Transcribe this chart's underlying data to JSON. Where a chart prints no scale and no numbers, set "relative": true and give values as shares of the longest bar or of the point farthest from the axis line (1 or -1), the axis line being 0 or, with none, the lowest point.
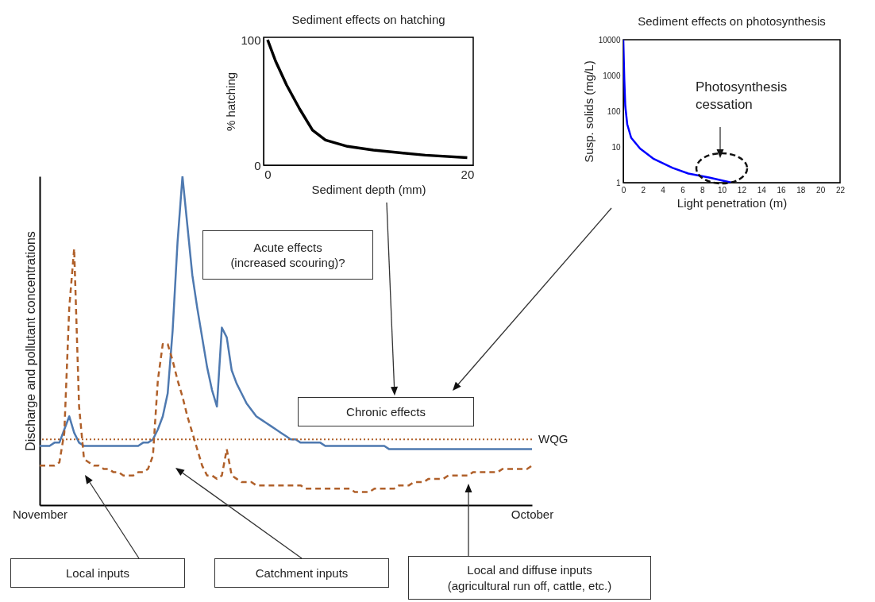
{
  "chart_data": [
    {
      "type": "line",
      "relative": true,
      "ylabel": "Discharge and pollutant concentrations",
      "categories": [
        "November",
        null,
        null,
        null,
        null,
        null,
        null,
        null,
        null,
        null,
        null,
        null,
        null,
        null,
        null,
        null,
        null,
        null,
        null,
        null,
        null,
        null,
        null,
        null,
        null,
        null,
        null,
        null,
        null,
        null,
        null,
        null,
        null,
        null,
        null,
        null,
        null,
        null,
        null,
        null,
        null,
        null,
        null,
        null,
        null,
        null,
        null,
        null,
        null,
        null,
        null,
        null,
        null,
        null,
        null,
        null,
        null,
        null,
        null,
        null,
        null,
        null,
        null,
        null,
        null,
        null,
        null,
        null,
        null,
        null,
        null,
        null,
        null,
        null,
        null,
        null,
        null,
        null,
        null,
        null,
        null,
        null,
        null,
        null,
        null,
        null,
        null,
        null,
        null,
        null,
        null,
        null,
        null,
        null,
        null,
        null,
        null,
        null,
        null,
        null,
        "October"
      ],
      "series": [
        {
          "color": "#4e79b0",
          "line_style": "solid",
          "values": [
            0.18,
            0.18,
            0.18,
            0.19,
            0.19,
            0.23,
            0.27,
            0.22,
            0.19,
            0.18,
            0.18,
            0.18,
            0.18,
            0.18,
            0.18,
            0.18,
            0.18,
            0.18,
            0.18,
            0.18,
            0.18,
            0.19,
            0.19,
            0.2,
            0.23,
            0.27,
            0.34,
            0.53,
            0.8,
            1,
            0.85,
            0.7,
            0.6,
            0.51,
            0.42,
            0.35,
            0.3,
            0.54,
            0.51,
            0.41,
            0.37,
            0.34,
            0.31,
            0.29,
            0.27,
            0.26,
            0.25,
            0.24,
            0.23,
            0.22,
            0.21,
            0.2,
            0.2,
            0.19,
            0.19,
            0.19,
            0.19,
            0.19,
            0.18,
            0.18,
            0.18,
            0.18,
            0.18,
            0.18,
            0.18,
            0.18,
            0.18,
            0.18,
            0.18,
            0.18,
            0.18,
            0.17,
            0.17,
            0.17,
            0.17,
            0.17,
            0.17,
            0.17,
            0.17,
            0.17,
            0.17,
            0.17,
            0.17,
            0.17,
            0.17,
            0.17,
            0.17,
            0.17,
            0.17,
            0.17,
            0.17,
            0.17,
            0.17,
            0.17,
            0.17,
            0.17,
            0.17,
            0.17,
            0.17,
            0.17,
            0.17
          ]
        },
        {
          "color": "#b0602a",
          "line_style": "dashed",
          "values": [
            0.12,
            0.12,
            0.12,
            0.12,
            0.13,
            0.22,
            0.6,
            0.78,
            0.3,
            0.14,
            0.13,
            0.12,
            0.12,
            0.11,
            0.11,
            0.1,
            0.1,
            0.09,
            0.09,
            0.09,
            0.1,
            0.1,
            0.11,
            0.15,
            0.38,
            0.49,
            0.49,
            0.44,
            0.38,
            0.33,
            0.27,
            0.22,
            0.17,
            0.12,
            0.09,
            0.09,
            0.08,
            0.09,
            0.17,
            0.09,
            0.08,
            0.07,
            0.07,
            0.07,
            0.06,
            0.06,
            0.06,
            0.06,
            0.06,
            0.06,
            0.06,
            0.06,
            0.06,
            0.06,
            0.05,
            0.05,
            0.05,
            0.05,
            0.05,
            0.05,
            0.05,
            0.05,
            0.05,
            0.05,
            0.04,
            0.04,
            0.04,
            0.04,
            0.05,
            0.05,
            0.05,
            0.05,
            0.05,
            0.06,
            0.06,
            0.06,
            0.07,
            0.07,
            0.07,
            0.08,
            0.08,
            0.08,
            0.08,
            0.09,
            0.09,
            0.09,
            0.09,
            0.09,
            0.1,
            0.1,
            0.1,
            0.1,
            0.1,
            0.1,
            0.11,
            0.11,
            0.11,
            0.11,
            0.11,
            0.11,
            0.12
          ]
        }
      ],
      "ref_lines": [
        {
          "axis": "y",
          "value": 0.2,
          "label": "WQG",
          "color": "#b0602a",
          "line_style": "dotted"
        }
      ],
      "annotations": [
        "Acute effects (increased scouring)?",
        "Chronic effects",
        "Local inputs",
        "Catchment inputs",
        "Local and diffuse inputs (agricultural run off, cattle, etc.)"
      ]
    },
    {
      "type": "line",
      "title": "Sediment effects on hatching",
      "xlabel": "Sediment depth (mm)",
      "ylabel": "% hatching",
      "xlim": [
        -0.4,
        20.6
      ],
      "xticks": [
        0,
        20
      ],
      "ylim": [
        0,
        102
      ],
      "yticks": [
        0,
        100
      ],
      "series": [
        {
          "color": "#000000",
          "x": [
            0,
            0.8,
            1.9,
            3.2,
            4.5,
            5.8,
            8,
            10.6,
            13.2,
            15.8,
            20
          ],
          "values": [
            100,
            83,
            64,
            45,
            28,
            20,
            15,
            12,
            10,
            8,
            6
          ]
        }
      ]
    },
    {
      "type": "line",
      "title": "Sediment effects on photosynthesis",
      "xlabel": "Light penetration  (m)",
      "ylabel": "Susp. solids (mg/L)",
      "log": "y",
      "xlim": [
        0,
        22
      ],
      "xticks": [
        0,
        2,
        4,
        6,
        8,
        10,
        12,
        14,
        16,
        18,
        20,
        22
      ],
      "ylim": [
        1,
        10000
      ],
      "yticks": [
        1,
        10,
        100,
        1000,
        10000
      ],
      "series": [
        {
          "color": "#0000ff",
          "x": [
            0,
            0.1,
            0.2,
            0.4,
            0.8,
            1.7,
            3.1,
            5,
            6.6,
            8.7,
            11
          ],
          "values": [
            10000,
            800,
            140,
            43,
            18,
            9,
            4.6,
            2.6,
            1.8,
            1.4,
            1
          ]
        }
      ],
      "annotations": [
        "Photosynthesis cessation"
      ]
    }
  ]
}
